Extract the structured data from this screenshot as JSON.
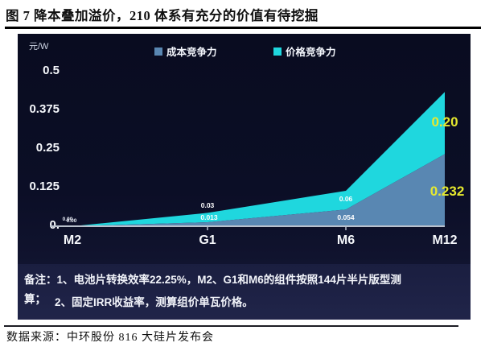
{
  "figure": {
    "title": "图 7 降本叠加溢价，210 体系有充分的价值有待挖掘"
  },
  "chart_data": {
    "type": "area",
    "stacked": true,
    "unit": "元/W",
    "categories": [
      "M2",
      "G1",
      "M6",
      "M12"
    ],
    "series": [
      {
        "name": "成本竞争力",
        "color": "#5987b2",
        "values": [
          0,
          0.013,
          0.054,
          0.232
        ],
        "point_labels": [
          "0.00",
          "0.013",
          "0.054",
          "0.232"
        ]
      },
      {
        "name": "价格竞争力",
        "color": "#1fd7de",
        "values": [
          0,
          0.03,
          0.06,
          0.2
        ],
        "point_labels": [
          "0.00",
          "0.03",
          "0.06",
          "0.20"
        ]
      }
    ],
    "ylim": [
      0,
      0.5
    ],
    "yticks": [
      "0.5",
      "0.375",
      "0.25",
      "0.125",
      "0."
    ],
    "highlight_color": "#e6e92f",
    "axis_color": "#b9c0cc",
    "background": "#0b0e26",
    "legend_position": "top",
    "grid": false
  },
  "notes": {
    "line1": "备注：1、电池片转换效率22.25%，M2、G1和M6的组件按照144片半片版型测",
    "line1_wrap": "算；",
    "line2": "2、固定IRR收益率，测算组价单瓦价格。"
  },
  "source": {
    "text": "数据来源：中环股份 816 大硅片发布会"
  }
}
